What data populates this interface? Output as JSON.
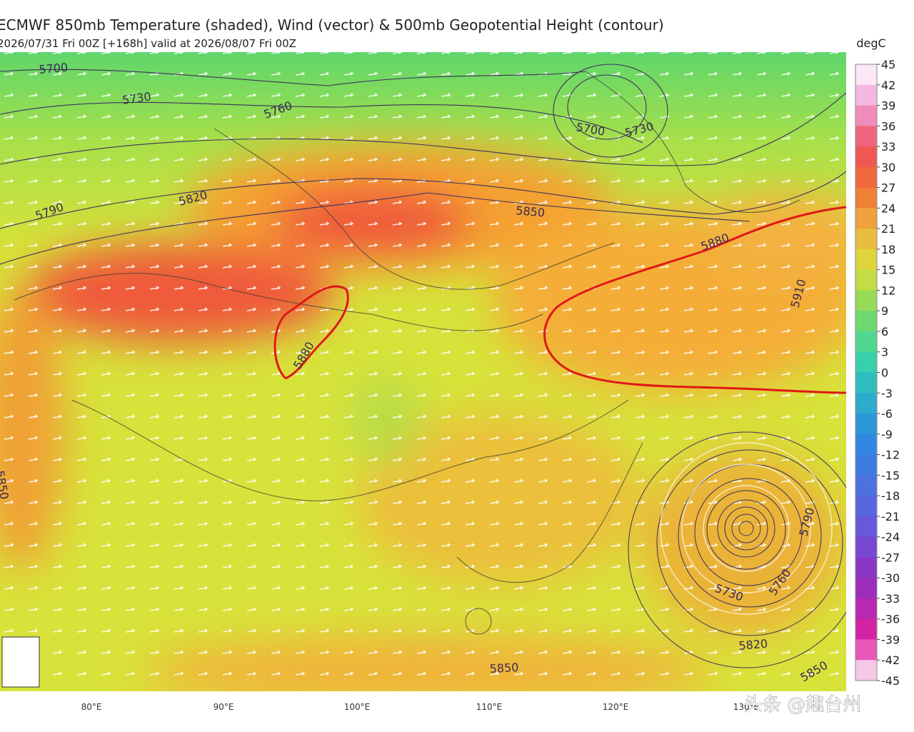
{
  "header": {
    "title": "ECMWF 850mb Temperature (shaded), Wind (vector) & 500mb Geopotential Height (contour)",
    "subtitle": "2026/07/31 Fri 00Z [+168h] valid at 2026/08/07 Fri 00Z"
  },
  "colorbar": {
    "unit": "degC",
    "ticks": [
      45,
      42,
      39,
      36,
      33,
      30,
      27,
      24,
      21,
      18,
      15,
      12,
      9,
      6,
      3,
      0,
      -3,
      -6,
      -9,
      -12,
      -15,
      -18,
      -21,
      -24,
      -27,
      -30,
      -33,
      -36,
      -39,
      -42,
      -45
    ]
  },
  "contour_labels": [
    5700,
    5730,
    5760,
    5700,
    5730,
    5820,
    5790,
    5850,
    5880,
    5880,
    5910,
    5850,
    5790,
    5730,
    5760,
    5820,
    5850,
    5850
  ],
  "longitudes": [
    "80°E",
    "90°E",
    "100°E",
    "110°E",
    "120°E",
    "130°E"
  ],
  "watermark": "头条 @趣台州"
}
